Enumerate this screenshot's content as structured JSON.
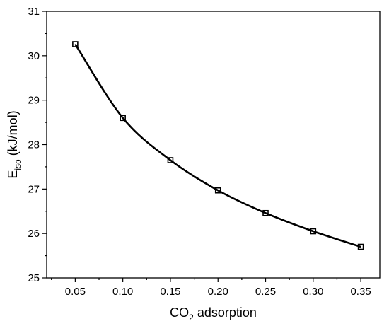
{
  "chart_data": {
    "type": "scatter",
    "title": "",
    "xlabel": {
      "main": "CO",
      "sub": "2",
      "rest": " adsorption"
    },
    "ylabel": {
      "main": "E",
      "sub": "iso",
      "rest": " (kJ/mol)"
    },
    "xlim": [
      0.02,
      0.37
    ],
    "ylim": [
      25,
      31
    ],
    "xticks": [
      "0.05",
      "0.10",
      "0.15",
      "0.20",
      "0.25",
      "0.30",
      "0.35"
    ],
    "yticks": [
      "25",
      "26",
      "27",
      "28",
      "29",
      "30",
      "31"
    ],
    "x": [
      0.05,
      0.1,
      0.15,
      0.2,
      0.25,
      0.3,
      0.35
    ],
    "series": [
      {
        "values": [
          30.26,
          28.6,
          27.65,
          26.97,
          26.46,
          26.05,
          25.7
        ],
        "marker": "open-square",
        "fit": "smooth-curve",
        "color": "#000000"
      }
    ],
    "grid": false,
    "legend": "none"
  }
}
